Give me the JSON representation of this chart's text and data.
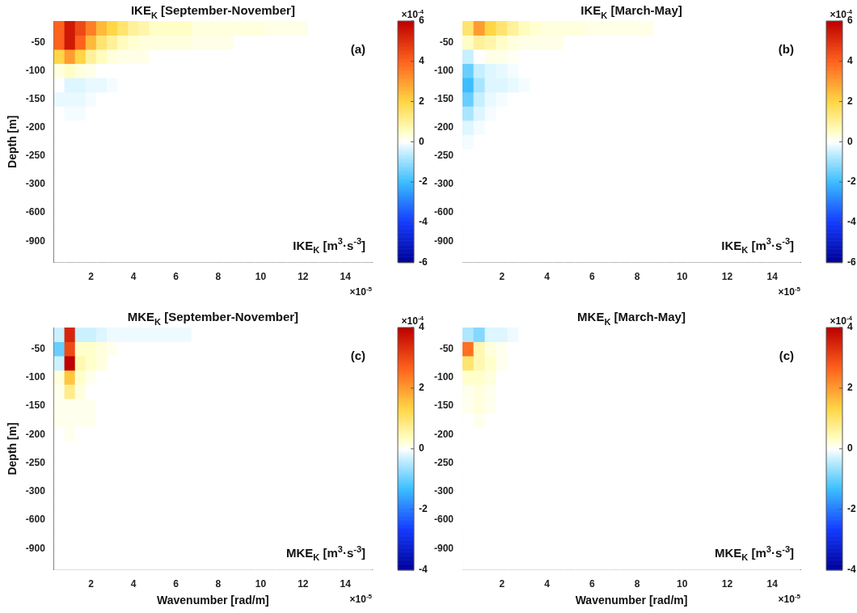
{
  "chart_data": [
    {
      "type": "heatmap",
      "title": "IKE$_{K}$ [September-November]",
      "ylabel": "Depth [m]",
      "categories": [
        null,
        null,
        null,
        "2",
        null,
        null,
        null,
        "4",
        null,
        null,
        null,
        "6",
        null,
        null,
        null,
        "8",
        null,
        null,
        null,
        "10",
        null,
        null,
        null,
        "12",
        null,
        null,
        null,
        "14",
        null,
        null
      ],
      "y_categories": [
        null,
        "-50",
        null,
        "-100",
        null,
        "-150",
        null,
        "-200",
        null,
        "-250",
        null,
        "-300",
        null,
        "-600",
        null,
        "-900",
        null
      ],
      "cells": [
        [
          4,
          5.5,
          4.5,
          3.5,
          2.5,
          2,
          1.5,
          1,
          0.8,
          0.5,
          0.5,
          0.5,
          0.5,
          0.3,
          0.3,
          0.3,
          0.3,
          0.3,
          0.3,
          0.3,
          0.2,
          0.2,
          0.2,
          0.2,
          0,
          0,
          0,
          0,
          0,
          0
        ],
        [
          4,
          5.5,
          4,
          2.5,
          1.5,
          1,
          0.6,
          0.4,
          0.3,
          0.3,
          0.3,
          0.3,
          0.3,
          0.2,
          0.2,
          0.2,
          0.2,
          0,
          0,
          0,
          0,
          0,
          0,
          0,
          0,
          0,
          0,
          0,
          0,
          0
        ],
        [
          2,
          3,
          2,
          1,
          0.6,
          0.3,
          0.2,
          0.2,
          0.2,
          0,
          0,
          0,
          0,
          0,
          0,
          0,
          0,
          0,
          0,
          0,
          0,
          0,
          0,
          0,
          0,
          0,
          0,
          0,
          0,
          0
        ],
        [
          0.3,
          0.5,
          0.3,
          0.2,
          0,
          0,
          0,
          0,
          0,
          0,
          0,
          0,
          0,
          0,
          0,
          0,
          0,
          0,
          0,
          0,
          0,
          0,
          0,
          0,
          0,
          0,
          0,
          0,
          0,
          0
        ],
        [
          0,
          -0.3,
          -0.3,
          -0.2,
          -0.2,
          -0.1,
          0,
          0,
          0,
          0,
          0,
          0,
          0,
          0,
          0,
          0,
          0,
          0,
          0,
          0,
          0,
          0,
          0,
          0,
          0,
          0,
          0,
          0,
          0,
          0
        ],
        [
          -0.2,
          -0.2,
          -0.2,
          -0.1,
          0,
          0,
          0,
          0,
          0,
          0,
          0,
          0,
          0,
          0,
          0,
          0,
          0,
          0,
          0,
          0,
          0,
          0,
          0,
          0,
          0,
          0,
          0,
          0,
          0,
          0
        ],
        [
          0,
          -0.1,
          -0.1,
          0,
          0,
          0,
          0,
          0,
          0,
          0,
          0,
          0,
          0,
          0,
          0,
          0,
          0,
          0,
          0,
          0,
          0,
          0,
          0,
          0,
          0,
          0,
          0,
          0,
          0,
          0
        ],
        [
          0,
          0,
          0,
          0,
          0,
          0,
          0,
          0,
          0,
          0,
          0,
          0,
          0,
          0,
          0,
          0,
          0,
          0,
          0,
          0,
          0,
          0,
          0,
          0,
          0,
          0,
          0,
          0,
          0,
          0
        ],
        [
          0,
          0,
          0,
          0,
          0,
          0,
          0,
          0,
          0,
          0,
          0,
          0,
          0,
          0,
          0,
          0,
          0,
          0,
          0,
          0,
          0,
          0,
          0,
          0,
          0,
          0,
          0,
          0,
          0,
          0
        ],
        [
          0,
          0,
          0,
          0,
          0,
          0,
          0,
          0,
          0,
          0,
          0,
          0,
          0,
          0,
          0,
          0,
          0,
          0,
          0,
          0,
          0,
          0,
          0,
          0,
          0,
          0,
          0,
          0,
          0,
          0
        ],
        [
          0,
          0,
          0,
          0,
          0,
          0,
          0,
          0,
          0,
          0,
          0,
          0,
          0,
          0,
          0,
          0,
          0,
          0,
          0,
          0,
          0,
          0,
          0,
          0,
          0,
          0,
          0,
          0,
          0,
          0
        ],
        [
          0,
          0,
          0,
          0,
          0,
          0,
          0,
          0,
          0,
          0,
          0,
          0,
          0,
          0,
          0,
          0,
          0,
          0,
          0,
          0,
          0,
          0,
          0,
          0,
          0,
          0,
          0,
          0,
          0,
          0
        ],
        [
          0,
          0,
          0,
          0,
          0,
          0,
          0,
          0,
          0,
          0,
          0,
          0,
          0,
          0,
          0,
          0,
          0,
          0,
          0,
          0,
          0,
          0,
          0,
          0,
          0,
          0,
          0,
          0,
          0,
          0
        ],
        [
          0,
          0,
          0,
          0,
          0,
          0,
          0,
          0,
          0,
          0,
          0,
          0,
          0,
          0,
          0,
          0,
          0,
          0,
          0,
          0,
          0,
          0,
          0,
          0,
          0,
          0,
          0,
          0,
          0,
          0
        ],
        [
          0,
          0,
          0,
          0,
          0,
          0,
          0,
          0,
          0,
          0,
          0,
          0,
          0,
          0,
          0,
          0,
          0,
          0,
          0,
          0,
          0,
          0,
          0,
          0,
          0,
          0,
          0,
          0,
          0,
          0
        ],
        [
          0,
          0,
          0,
          0,
          0,
          0,
          0,
          0,
          0,
          0,
          0,
          0,
          0,
          0,
          0,
          0,
          0,
          0,
          0,
          0,
          0,
          0,
          0,
          0,
          0,
          0,
          0,
          0,
          0,
          0
        ],
        [
          0,
          0,
          0,
          0,
          0,
          0,
          0,
          0,
          0,
          0,
          0,
          0,
          0,
          0,
          0,
          0,
          0,
          0,
          0,
          0,
          0,
          0,
          0,
          0,
          0,
          0,
          0,
          0,
          0,
          0
        ]
      ],
      "clim": [
        -6,
        6
      ],
      "cticks": [
        -6,
        -4,
        -2,
        0,
        2,
        4,
        6
      ],
      "annotations": [
        "(a)",
        "IKE$_{K}$ [m$^{3}$·s$^{-3}$]",
        "×10$^{-5}$",
        "×10$^{-4}$"
      ]
    },
    {
      "type": "heatmap",
      "title": "IKE$_{K}$ [March-May]",
      "categories": [
        null,
        null,
        null,
        "2",
        null,
        null,
        null,
        "4",
        null,
        null,
        null,
        "6",
        null,
        null,
        null,
        "8",
        null,
        null,
        null,
        "10",
        null,
        null,
        null,
        "12",
        null,
        null,
        null,
        "14",
        null,
        null
      ],
      "y_categories": [
        null,
        "-50",
        null,
        "-100",
        null,
        "-150",
        null,
        "-200",
        null,
        "-250",
        null,
        "-300",
        null,
        "-600",
        null,
        "-900",
        null
      ],
      "cells": [
        [
          1.5,
          3,
          2,
          1.5,
          1,
          0.6,
          0.4,
          0.3,
          0.3,
          0.3,
          0.3,
          0.2,
          0.2,
          0.2,
          0.2,
          0.2,
          0.2,
          0,
          0,
          0,
          0,
          0,
          0,
          0,
          0,
          0,
          0,
          0,
          0,
          0
        ],
        [
          0.5,
          1,
          0.8,
          0.5,
          0.3,
          0.2,
          0.2,
          0.2,
          0.2,
          0,
          0,
          0,
          0,
          0,
          0,
          0,
          0,
          0,
          0,
          0,
          0,
          0,
          0,
          0,
          0,
          0,
          0,
          0,
          0,
          0
        ],
        [
          -0.5,
          0,
          0.2,
          0.2,
          0.1,
          0,
          0,
          0,
          0,
          0,
          0,
          0,
          0,
          0,
          0,
          0,
          0,
          0,
          0,
          0,
          0,
          0,
          0,
          0,
          0,
          0,
          0,
          0,
          0,
          0
        ],
        [
          -1.5,
          -0.5,
          -0.3,
          -0.2,
          -0.1,
          0,
          0,
          0,
          0,
          0,
          0,
          0,
          0,
          0,
          0,
          0,
          0,
          0,
          0,
          0,
          0,
          0,
          0,
          0,
          0,
          0,
          0,
          0,
          0,
          0
        ],
        [
          -2,
          -0.8,
          -0.3,
          -0.3,
          -0.2,
          -0.1,
          0,
          0,
          0,
          0,
          0,
          0,
          0,
          0,
          0,
          0,
          0,
          0,
          0,
          0,
          0,
          0,
          0,
          0,
          0,
          0,
          0,
          0,
          0,
          0
        ],
        [
          -1.5,
          -0.5,
          -0.2,
          -0.1,
          0,
          0,
          0,
          0,
          0,
          0,
          0,
          0,
          0,
          0,
          0,
          0,
          0,
          0,
          0,
          0,
          0,
          0,
          0,
          0,
          0,
          0,
          0,
          0,
          0,
          0
        ],
        [
          -0.8,
          -0.3,
          -0.1,
          0,
          0,
          0,
          0,
          0,
          0,
          0,
          0,
          0,
          0,
          0,
          0,
          0,
          0,
          0,
          0,
          0,
          0,
          0,
          0,
          0,
          0,
          0,
          0,
          0,
          0,
          0
        ],
        [
          -0.3,
          -0.1,
          0,
          0,
          0,
          0,
          0,
          0,
          0,
          0,
          0,
          0,
          0,
          0,
          0,
          0,
          0,
          0,
          0,
          0,
          0,
          0,
          0,
          0,
          0,
          0,
          0,
          0,
          0,
          0
        ],
        [
          -0.1,
          0,
          0,
          0,
          0,
          0,
          0,
          0,
          0,
          0,
          0,
          0,
          0,
          0,
          0,
          0,
          0,
          0,
          0,
          0,
          0,
          0,
          0,
          0,
          0,
          0,
          0,
          0,
          0,
          0
        ],
        [
          0,
          0,
          0,
          0,
          0,
          0,
          0,
          0,
          0,
          0,
          0,
          0,
          0,
          0,
          0,
          0,
          0,
          0,
          0,
          0,
          0,
          0,
          0,
          0,
          0,
          0,
          0,
          0,
          0,
          0
        ],
        [
          0,
          0,
          0,
          0,
          0,
          0,
          0,
          0,
          0,
          0,
          0,
          0,
          0,
          0,
          0,
          0,
          0,
          0,
          0,
          0,
          0,
          0,
          0,
          0,
          0,
          0,
          0,
          0,
          0,
          0
        ],
        [
          0,
          0,
          0,
          0,
          0,
          0,
          0,
          0,
          0,
          0,
          0,
          0,
          0,
          0,
          0,
          0,
          0,
          0,
          0,
          0,
          0,
          0,
          0,
          0,
          0,
          0,
          0,
          0,
          0,
          0
        ],
        [
          0,
          0,
          0,
          0,
          0,
          0,
          0,
          0,
          0,
          0,
          0,
          0,
          0,
          0,
          0,
          0,
          0,
          0,
          0,
          0,
          0,
          0,
          0,
          0,
          0,
          0,
          0,
          0,
          0,
          0
        ],
        [
          0,
          0,
          0,
          0,
          0,
          0,
          0,
          0,
          0,
          0,
          0,
          0,
          0,
          0,
          0,
          0,
          0,
          0,
          0,
          0,
          0,
          0,
          0,
          0,
          0,
          0,
          0,
          0,
          0,
          0
        ],
        [
          0,
          0,
          0,
          0,
          0,
          0,
          0,
          0,
          0,
          0,
          0,
          0,
          0,
          0,
          0,
          0,
          0,
          0,
          0,
          0,
          0,
          0,
          0,
          0,
          0,
          0,
          0,
          0,
          0,
          0
        ],
        [
          0,
          0,
          0,
          0,
          0,
          0,
          0,
          0,
          0,
          0,
          0,
          0,
          0,
          0,
          0,
          0,
          0,
          0,
          0,
          0,
          0,
          0,
          0,
          0,
          0,
          0,
          0,
          0,
          0,
          0
        ],
        [
          0,
          0,
          0,
          0,
          0,
          0,
          0,
          0,
          0,
          0,
          0,
          0,
          0,
          0,
          0,
          0,
          0,
          0,
          0,
          0,
          0,
          0,
          0,
          0,
          0,
          0,
          0,
          0,
          0,
          0
        ]
      ],
      "clim": [
        -6,
        6
      ],
      "cticks": [
        -6,
        -4,
        -2,
        0,
        2,
        4,
        6
      ],
      "annotations": [
        "(b)",
        "IKE$_{K}$ [m$^{3}$·s$^{-3}$]",
        "×10$^{-5}$",
        "×10$^{-4}$"
      ]
    },
    {
      "type": "heatmap",
      "title": "MKE$_{K}$ [September-November]",
      "xlabel": "Wavenumber [rad/m]",
      "ylabel": "Depth [m]",
      "categories": [
        null,
        null,
        null,
        "2",
        null,
        null,
        null,
        "4",
        null,
        null,
        null,
        "6",
        null,
        null,
        null,
        "8",
        null,
        null,
        null,
        "10",
        null,
        null,
        null,
        "12",
        null,
        null,
        null,
        "14",
        null,
        null
      ],
      "y_categories": [
        null,
        "-50",
        null,
        "-100",
        null,
        "-150",
        null,
        "-200",
        null,
        "-250",
        null,
        "-300",
        null,
        "-600",
        null,
        "-900",
        null
      ],
      "cells": [
        [
          -0.3,
          3.5,
          -0.3,
          -0.3,
          -0.2,
          -0.1,
          -0.1,
          -0.1,
          -0.1,
          -0.1,
          -0.1,
          -0.1,
          -0.1,
          0,
          0,
          0,
          0,
          0,
          0,
          0,
          0,
          0,
          0,
          0,
          0,
          0,
          0,
          0,
          0,
          0
        ],
        [
          -1,
          3,
          0.3,
          0.3,
          0.2,
          0.1,
          0,
          0,
          0,
          0,
          0,
          0,
          0,
          0,
          0,
          0,
          0,
          0,
          0,
          0,
          0,
          0,
          0,
          0,
          0,
          0,
          0,
          0,
          0,
          0
        ],
        [
          -0.3,
          4,
          0.5,
          0.3,
          0.2,
          0,
          0,
          0,
          0,
          0,
          0,
          0,
          0,
          0,
          0,
          0,
          0,
          0,
          0,
          0,
          0,
          0,
          0,
          0,
          0,
          0,
          0,
          0,
          0,
          0
        ],
        [
          0.2,
          1.5,
          0.3,
          0.1,
          0,
          0,
          0,
          0,
          0,
          0,
          0,
          0,
          0,
          0,
          0,
          0,
          0,
          0,
          0,
          0,
          0,
          0,
          0,
          0,
          0,
          0,
          0,
          0,
          0,
          0
        ],
        [
          0.1,
          0.8,
          0.2,
          0,
          0,
          0,
          0,
          0,
          0,
          0,
          0,
          0,
          0,
          0,
          0,
          0,
          0,
          0,
          0,
          0,
          0,
          0,
          0,
          0,
          0,
          0,
          0,
          0,
          0,
          0
        ],
        [
          0.1,
          0.1,
          0.1,
          0.1,
          0,
          0,
          0,
          0,
          0,
          0,
          0,
          0,
          0,
          0,
          0,
          0,
          0,
          0,
          0,
          0,
          0,
          0,
          0,
          0,
          0,
          0,
          0,
          0,
          0,
          0
        ],
        [
          0.1,
          0.1,
          0.1,
          0.1,
          0,
          0,
          0,
          0,
          0,
          0,
          0,
          0,
          0,
          0,
          0,
          0,
          0,
          0,
          0,
          0,
          0,
          0,
          0,
          0,
          0,
          0,
          0,
          0,
          0,
          0
        ],
        [
          0,
          0.1,
          0,
          0,
          0,
          0,
          0,
          0,
          0,
          0,
          0,
          0,
          0,
          0,
          0,
          0,
          0,
          0,
          0,
          0,
          0,
          0,
          0,
          0,
          0,
          0,
          0,
          0,
          0,
          0
        ],
        [
          0,
          0,
          0,
          0,
          0,
          0,
          0,
          0,
          0,
          0,
          0,
          0,
          0,
          0,
          0,
          0,
          0,
          0,
          0,
          0,
          0,
          0,
          0,
          0,
          0,
          0,
          0,
          0,
          0,
          0
        ],
        [
          0,
          0,
          0,
          0,
          0,
          0,
          0,
          0,
          0,
          0,
          0,
          0,
          0,
          0,
          0,
          0,
          0,
          0,
          0,
          0,
          0,
          0,
          0,
          0,
          0,
          0,
          0,
          0,
          0,
          0
        ],
        [
          0,
          0,
          0,
          0,
          0,
          0,
          0,
          0,
          0,
          0,
          0,
          0,
          0,
          0,
          0,
          0,
          0,
          0,
          0,
          0,
          0,
          0,
          0,
          0,
          0,
          0,
          0,
          0,
          0,
          0
        ],
        [
          0,
          0,
          0,
          0,
          0,
          0,
          0,
          0,
          0,
          0,
          0,
          0,
          0,
          0,
          0,
          0,
          0,
          0,
          0,
          0,
          0,
          0,
          0,
          0,
          0,
          0,
          0,
          0,
          0,
          0
        ],
        [
          0,
          0,
          0,
          0,
          0,
          0,
          0,
          0,
          0,
          0,
          0,
          0,
          0,
          0,
          0,
          0,
          0,
          0,
          0,
          0,
          0,
          0,
          0,
          0,
          0,
          0,
          0,
          0,
          0,
          0
        ],
        [
          0,
          0,
          0,
          0,
          0,
          0,
          0,
          0,
          0,
          0,
          0,
          0,
          0,
          0,
          0,
          0,
          0,
          0,
          0,
          0,
          0,
          0,
          0,
          0,
          0,
          0,
          0,
          0,
          0,
          0
        ],
        [
          0,
          0,
          0,
          0,
          0,
          0,
          0,
          0,
          0,
          0,
          0,
          0,
          0,
          0,
          0,
          0,
          0,
          0,
          0,
          0,
          0,
          0,
          0,
          0,
          0,
          0,
          0,
          0,
          0,
          0
        ],
        [
          0,
          0,
          0,
          0,
          0,
          0,
          0,
          0,
          0,
          0,
          0,
          0,
          0,
          0,
          0,
          0,
          0,
          0,
          0,
          0,
          0,
          0,
          0,
          0,
          0,
          0,
          0,
          0,
          0,
          0
        ],
        [
          0,
          0,
          0,
          0,
          0,
          0,
          0,
          0,
          0,
          0,
          0,
          0,
          0,
          0,
          0,
          0,
          0,
          0,
          0,
          0,
          0,
          0,
          0,
          0,
          0,
          0,
          0,
          0,
          0,
          0
        ]
      ],
      "clim": [
        -4,
        4
      ],
      "cticks": [
        -4,
        -2,
        0,
        2,
        4
      ],
      "annotations": [
        "(c)",
        "MKE$_{K}$ [m$^{3}$·s$^{-3}$]",
        "×10$^{-5}$",
        "×10$^{-4}$"
      ]
    },
    {
      "type": "heatmap",
      "title": "MKE$_{K}$ [March-May]",
      "xlabel": "Wavenumber [rad/m]",
      "categories": [
        null,
        null,
        null,
        "2",
        null,
        null,
        null,
        "4",
        null,
        null,
        null,
        "6",
        null,
        null,
        null,
        "8",
        null,
        null,
        null,
        "10",
        null,
        null,
        null,
        "12",
        null,
        null,
        null,
        "14",
        null,
        null
      ],
      "y_categories": [
        null,
        "-50",
        null,
        "-100",
        null,
        "-150",
        null,
        "-200",
        null,
        "-250",
        null,
        "-300",
        null,
        "-600",
        null,
        "-900",
        null
      ],
      "cells": [
        [
          -0.5,
          -0.8,
          -0.2,
          -0.2,
          -0.1,
          0,
          0,
          0,
          0,
          0,
          0,
          0,
          0,
          0,
          0,
          0,
          0,
          0,
          0,
          0,
          0,
          0,
          0,
          0,
          0,
          0,
          0,
          0,
          0,
          0
        ],
        [
          2.5,
          0.5,
          0.2,
          0.1,
          0,
          0,
          0,
          0,
          0,
          0,
          0,
          0,
          0,
          0,
          0,
          0,
          0,
          0,
          0,
          0,
          0,
          0,
          0,
          0,
          0,
          0,
          0,
          0,
          0,
          0
        ],
        [
          1,
          0.5,
          0.3,
          0.1,
          0,
          0,
          0,
          0,
          0,
          0,
          0,
          0,
          0,
          0,
          0,
          0,
          0,
          0,
          0,
          0,
          0,
          0,
          0,
          0,
          0,
          0,
          0,
          0,
          0,
          0
        ],
        [
          0.3,
          0.3,
          0.2,
          0,
          0,
          0,
          0,
          0,
          0,
          0,
          0,
          0,
          0,
          0,
          0,
          0,
          0,
          0,
          0,
          0,
          0,
          0,
          0,
          0,
          0,
          0,
          0,
          0,
          0,
          0
        ],
        [
          0.1,
          0.2,
          0.1,
          0,
          0,
          0,
          0,
          0,
          0,
          0,
          0,
          0,
          0,
          0,
          0,
          0,
          0,
          0,
          0,
          0,
          0,
          0,
          0,
          0,
          0,
          0,
          0,
          0,
          0,
          0
        ],
        [
          0.1,
          0.2,
          0.1,
          0,
          0,
          0,
          0,
          0,
          0,
          0,
          0,
          0,
          0,
          0,
          0,
          0,
          0,
          0,
          0,
          0,
          0,
          0,
          0,
          0,
          0,
          0,
          0,
          0,
          0,
          0
        ],
        [
          0,
          0.1,
          0,
          0,
          0,
          0,
          0,
          0,
          0,
          0,
          0,
          0,
          0,
          0,
          0,
          0,
          0,
          0,
          0,
          0,
          0,
          0,
          0,
          0,
          0,
          0,
          0,
          0,
          0,
          0
        ],
        [
          0,
          0,
          0,
          0,
          0,
          0,
          0,
          0,
          0,
          0,
          0,
          0,
          0,
          0,
          0,
          0,
          0,
          0,
          0,
          0,
          0,
          0,
          0,
          0,
          0,
          0,
          0,
          0,
          0,
          0
        ],
        [
          0,
          0,
          0,
          0,
          0,
          0,
          0,
          0,
          0,
          0,
          0,
          0,
          0,
          0,
          0,
          0,
          0,
          0,
          0,
          0,
          0,
          0,
          0,
          0,
          0,
          0,
          0,
          0,
          0,
          0
        ],
        [
          0,
          0,
          0,
          0,
          0,
          0,
          0,
          0,
          0,
          0,
          0,
          0,
          0,
          0,
          0,
          0,
          0,
          0,
          0,
          0,
          0,
          0,
          0,
          0,
          0,
          0,
          0,
          0,
          0,
          0
        ],
        [
          0,
          0,
          0,
          0,
          0,
          0,
          0,
          0,
          0,
          0,
          0,
          0,
          0,
          0,
          0,
          0,
          0,
          0,
          0,
          0,
          0,
          0,
          0,
          0,
          0,
          0,
          0,
          0,
          0,
          0
        ],
        [
          0,
          0,
          0,
          0,
          0,
          0,
          0,
          0,
          0,
          0,
          0,
          0,
          0,
          0,
          0,
          0,
          0,
          0,
          0,
          0,
          0,
          0,
          0,
          0,
          0,
          0,
          0,
          0,
          0,
          0
        ],
        [
          0,
          0,
          0,
          0,
          0,
          0,
          0,
          0,
          0,
          0,
          0,
          0,
          0,
          0,
          0,
          0,
          0,
          0,
          0,
          0,
          0,
          0,
          0,
          0,
          0,
          0,
          0,
          0,
          0,
          0
        ],
        [
          0,
          0,
          0,
          0,
          0,
          0,
          0,
          0,
          0,
          0,
          0,
          0,
          0,
          0,
          0,
          0,
          0,
          0,
          0,
          0,
          0,
          0,
          0,
          0,
          0,
          0,
          0,
          0,
          0,
          0
        ],
        [
          0,
          0,
          0,
          0,
          0,
          0,
          0,
          0,
          0,
          0,
          0,
          0,
          0,
          0,
          0,
          0,
          0,
          0,
          0,
          0,
          0,
          0,
          0,
          0,
          0,
          0,
          0,
          0,
          0,
          0
        ],
        [
          0,
          0,
          0,
          0,
          0,
          0,
          0,
          0,
          0,
          0,
          0,
          0,
          0,
          0,
          0,
          0,
          0,
          0,
          0,
          0,
          0,
          0,
          0,
          0,
          0,
          0,
          0,
          0,
          0,
          0
        ],
        [
          0,
          0,
          0,
          0,
          0,
          0,
          0,
          0,
          0,
          0,
          0,
          0,
          0,
          0,
          0,
          0,
          0,
          0,
          0,
          0,
          0,
          0,
          0,
          0,
          0,
          0,
          0,
          0,
          0,
          0
        ]
      ],
      "clim": [
        -4,
        4
      ],
      "cticks": [
        -4,
        -2,
        0,
        2,
        4
      ],
      "annotations": [
        "(c)",
        "MKE$_{K}$ [m$^{3}$·s$^{-3}$]",
        "×10$^{-5}$",
        "×10$^{-4}$"
      ]
    }
  ]
}
